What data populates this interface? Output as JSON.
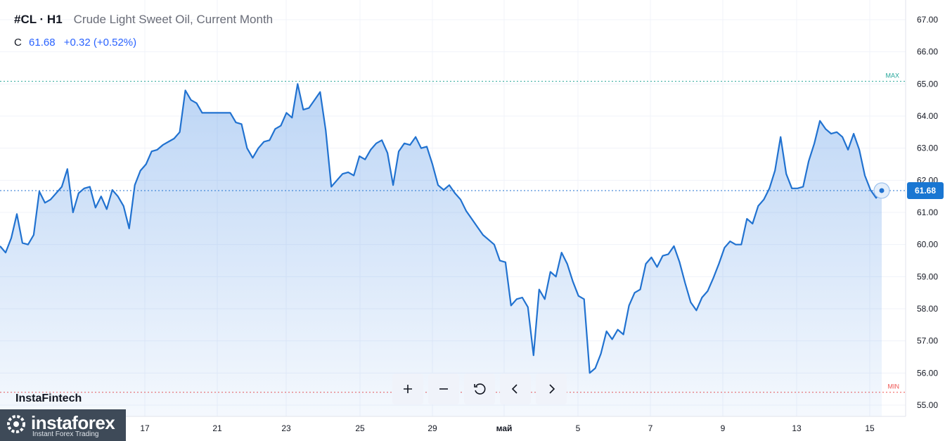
{
  "header": {
    "symbol": "#CL · H1",
    "instrument": "Crude Light Sweet Oil, Current Month"
  },
  "quote": {
    "label": "C",
    "value": "61.68",
    "change": "+0.32 (+0.52%)"
  },
  "brand": {
    "watermark": "InstaFintech",
    "logo_main": "instaforex",
    "logo_sub": "Instant Forex Trading"
  },
  "toolbar": [
    {
      "name": "zoom-in-button",
      "icon": "plus-icon"
    },
    {
      "name": "zoom-out-button",
      "icon": "minus-icon"
    },
    {
      "name": "reset-button",
      "icon": "reset-icon"
    },
    {
      "name": "scroll-left-button",
      "icon": "chevron-left-icon"
    },
    {
      "name": "scroll-right-button",
      "icon": "chevron-right-icon"
    }
  ],
  "colors": {
    "line": "#2172d0",
    "area": "#2f7de1",
    "max": "#26a69a",
    "min": "#ef5350",
    "last_badge": "#1976d2"
  },
  "chart_data": {
    "type": "area",
    "title": "Crude Light Sweet Oil, Current Month",
    "xlabel": "",
    "ylabel": "",
    "ylim": [
      54.6,
      67.3
    ],
    "y_ticks": [
      "67.00",
      "66.00",
      "65.00",
      "64.00",
      "63.00",
      "62.00",
      "61.00",
      "60.00",
      "59.00",
      "58.00",
      "57.00",
      "56.00",
      "55.00"
    ],
    "x_ticks": [
      "17",
      "21",
      "23",
      "25",
      "29",
      "май",
      "5",
      "7",
      "9",
      "13",
      "15"
    ],
    "grid": true,
    "max_label": "MAX",
    "max_value": 65.08,
    "min_label": "MIN",
    "min_value": 55.4,
    "last_value": 61.68,
    "last_label": "61.68",
    "series": [
      {
        "values": [
          59.95,
          59.75,
          60.2,
          60.95,
          60.05,
          60.0,
          60.3,
          61.65,
          61.3,
          61.4,
          61.6,
          61.8,
          62.35,
          61.0,
          61.6,
          61.75,
          61.8,
          61.15,
          61.5,
          61.1,
          61.7,
          61.5,
          61.2,
          60.5,
          61.85,
          62.3,
          62.5,
          62.9,
          62.95,
          63.1,
          63.2,
          63.3,
          63.5,
          64.8,
          64.5,
          64.4,
          64.1,
          64.1,
          64.1,
          64.1,
          64.1,
          64.1,
          63.8,
          63.75,
          63.0,
          62.7,
          63.0,
          63.2,
          63.25,
          63.6,
          63.7,
          64.1,
          63.95,
          65.0,
          64.2,
          64.25,
          64.5,
          64.75,
          63.55,
          61.8,
          62.0,
          62.2,
          62.25,
          62.15,
          62.75,
          62.65,
          62.95,
          63.15,
          63.25,
          62.85,
          61.85,
          62.9,
          63.15,
          63.1,
          63.35,
          63.0,
          63.05,
          62.5,
          61.85,
          61.7,
          61.85,
          61.6,
          61.4,
          61.05,
          60.8,
          60.55,
          60.3,
          60.15,
          60.0,
          59.5,
          59.45,
          58.1,
          58.3,
          58.35,
          58.05,
          56.55,
          58.6,
          58.3,
          59.15,
          59.0,
          59.75,
          59.4,
          58.85,
          58.4,
          58.3,
          56.0,
          56.15,
          56.6,
          57.3,
          57.05,
          57.35,
          57.2,
          58.1,
          58.5,
          58.6,
          59.4,
          59.6,
          59.3,
          59.65,
          59.7,
          59.95,
          59.45,
          58.8,
          58.2,
          57.95,
          58.35,
          58.55,
          58.95,
          59.4,
          59.9,
          60.1,
          60.0,
          60.0,
          60.8,
          60.65,
          61.2,
          61.4,
          61.75,
          62.3,
          63.35,
          62.2,
          61.75,
          61.75,
          61.8,
          62.6,
          63.15,
          63.85,
          63.6,
          63.45,
          63.5,
          63.35,
          62.95,
          63.45,
          62.95,
          62.15,
          61.7,
          61.45,
          61.68
        ]
      }
    ]
  }
}
